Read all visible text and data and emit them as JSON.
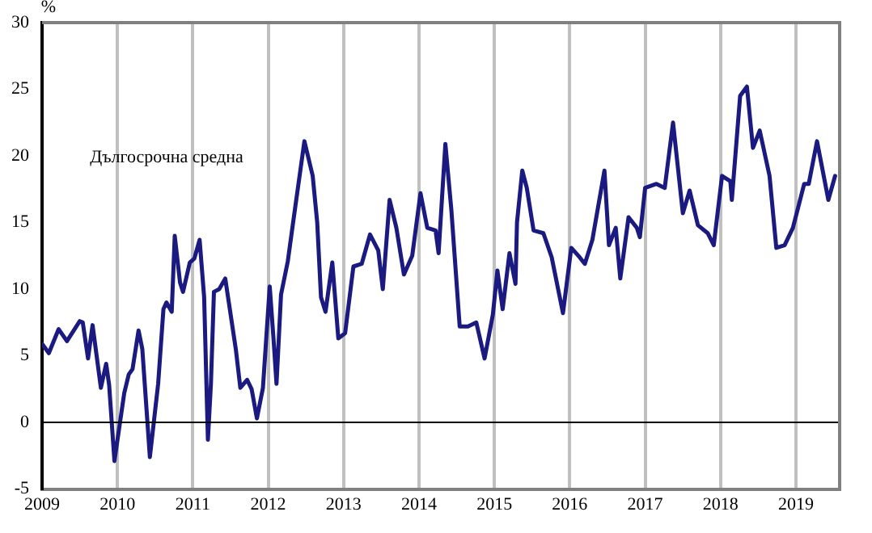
{
  "chart_data": {
    "type": "line",
    "ylabel": "%",
    "xlim": [
      2009,
      2019.58
    ],
    "xticks": [
      2009,
      2010,
      2011,
      2012,
      2013,
      2014,
      2015,
      2016,
      2017,
      2018,
      2019
    ],
    "ylim": [
      -5,
      30
    ],
    "yticks": [
      -5,
      0,
      5,
      10,
      15,
      20,
      25,
      30
    ],
    "grid": "x",
    "marker": "none",
    "line_style": "solid",
    "annotations": [
      "Дългосрочна средна"
    ],
    "ref_lines": [
      {
        "axis": "y",
        "value": 0,
        "color": "#000000"
      }
    ],
    "series": [
      {
        "color": "#1a1a80",
        "x": [
          2009.0,
          2009.09,
          2009.22,
          2009.33,
          2009.5,
          2009.54,
          2009.61,
          2009.67,
          2009.78,
          2009.85,
          2009.89,
          2009.96,
          2010.09,
          2010.15,
          2010.2,
          2010.28,
          2010.33,
          2010.43,
          2010.54,
          2010.61,
          2010.65,
          2010.72,
          2010.76,
          2010.83,
          2010.87,
          2010.96,
          2011.02,
          2011.09,
          2011.15,
          2011.2,
          2011.24,
          2011.28,
          2011.35,
          2011.43,
          2011.57,
          2011.63,
          2011.72,
          2011.78,
          2011.85,
          2011.93,
          2012.02,
          2012.07,
          2012.11,
          2012.17,
          2012.26,
          2012.33,
          2012.48,
          2012.59,
          2012.65,
          2012.7,
          2012.76,
          2012.85,
          2012.93,
          2013.02,
          2013.13,
          2013.24,
          2013.35,
          2013.46,
          2013.52,
          2013.61,
          2013.7,
          2013.8,
          2013.91,
          2014.02,
          2014.11,
          2014.22,
          2014.26,
          2014.35,
          2014.43,
          2014.54,
          2014.65,
          2014.76,
          2014.87,
          2014.98,
          2015.04,
          2015.11,
          2015.2,
          2015.28,
          2015.3,
          2015.37,
          2015.43,
          2015.52,
          2015.65,
          2015.76,
          2015.91,
          2016.02,
          2016.13,
          2016.2,
          2016.3,
          2016.46,
          2016.52,
          2016.61,
          2016.67,
          2016.78,
          2016.89,
          2016.93,
          2017.0,
          2017.15,
          2017.26,
          2017.37,
          2017.5,
          2017.59,
          2017.7,
          2017.83,
          2017.91,
          2018.02,
          2018.13,
          2018.15,
          2018.26,
          2018.35,
          2018.43,
          2018.52,
          2018.65,
          2018.74,
          2018.85,
          2018.96,
          2019.11,
          2019.17,
          2019.28,
          2019.43,
          2019.52
        ],
        "values": [
          5.9,
          5.2,
          7.0,
          6.1,
          7.6,
          7.5,
          4.8,
          7.3,
          2.6,
          4.4,
          2.8,
          -2.9,
          2.2,
          3.6,
          4.0,
          6.9,
          5.5,
          -2.6,
          2.9,
          8.5,
          9.0,
          8.3,
          14.0,
          10.5,
          9.8,
          12.0,
          12.3,
          13.7,
          9.4,
          -1.3,
          2.9,
          9.8,
          10.0,
          10.8,
          5.5,
          2.6,
          3.2,
          2.5,
          0.3,
          2.6,
          10.2,
          6.3,
          2.9,
          9.6,
          12.1,
          15.0,
          21.1,
          18.5,
          15.0,
          9.4,
          8.3,
          12.0,
          6.3,
          6.7,
          11.7,
          11.9,
          14.1,
          12.9,
          10.0,
          16.7,
          14.6,
          11.1,
          12.5,
          17.2,
          14.6,
          14.4,
          12.7,
          20.9,
          15.9,
          7.2,
          7.2,
          7.5,
          4.8,
          8.1,
          11.4,
          8.5,
          12.7,
          10.4,
          15.0,
          18.9,
          17.6,
          14.4,
          14.2,
          12.4,
          8.2,
          13.1,
          12.4,
          11.9,
          13.7,
          18.9,
          13.3,
          14.6,
          10.8,
          15.4,
          14.6,
          13.9,
          17.6,
          17.9,
          17.6,
          22.5,
          15.7,
          17.4,
          14.8,
          14.2,
          13.3,
          18.5,
          18.1,
          16.7,
          24.5,
          25.2,
          20.6,
          21.9,
          18.5,
          13.1,
          13.3,
          14.6,
          17.9,
          17.9,
          21.1,
          16.7,
          18.5
        ]
      }
    ]
  }
}
